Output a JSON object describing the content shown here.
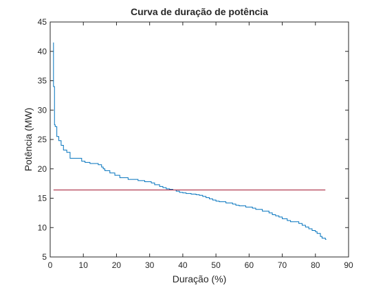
{
  "chart_data": {
    "type": "line",
    "title": "Curva de duração de potência",
    "xlabel": "Duração (%)",
    "ylabel": "Potência (MW)",
    "xlim": [
      0,
      90
    ],
    "ylim": [
      5,
      45
    ],
    "xticks": [
      0,
      10,
      20,
      30,
      40,
      50,
      60,
      70,
      80,
      90
    ],
    "yticks": [
      5,
      10,
      15,
      20,
      25,
      30,
      35,
      40,
      45
    ],
    "grid": false,
    "legend": "none",
    "series": [
      {
        "color": "#0072bd",
        "style": "step",
        "x": [
          1.0,
          1.1,
          1.3,
          1.5,
          2.0,
          2.6,
          3.3,
          4.0,
          5.0,
          6.0,
          9.5,
          10.5,
          12.0,
          14.5,
          15.5,
          16.0,
          16.5,
          18.0,
          19.5,
          21.0,
          23.5,
          26.5,
          28.5,
          30.5,
          31.5,
          33.0,
          34.0,
          35.0,
          36.0,
          37.0,
          38.0,
          39.0,
          40.0,
          41.0,
          42.5,
          44.0,
          45.0,
          46.0,
          47.0,
          48.0,
          49.0,
          50.0,
          51.0,
          53.0,
          55.0,
          56.0,
          57.0,
          59.0,
          61.0,
          62.0,
          64.0,
          66.0,
          67.0,
          68.0,
          69.0,
          70.0,
          71.5,
          72.5,
          75.0,
          76.0,
          77.0,
          78.0,
          79.0,
          80.0,
          80.5,
          81.5,
          82.0,
          83.0
        ],
        "y": [
          41.5,
          34.0,
          27.5,
          27.2,
          25.5,
          24.8,
          24.0,
          23.2,
          22.8,
          21.8,
          21.3,
          21.1,
          20.9,
          20.7,
          20.3,
          20.0,
          19.7,
          19.3,
          18.9,
          18.5,
          18.2,
          18.0,
          17.8,
          17.6,
          17.3,
          17.0,
          16.8,
          16.6,
          16.5,
          16.4,
          16.2,
          16.0,
          15.9,
          15.8,
          15.7,
          15.6,
          15.5,
          15.3,
          15.1,
          14.9,
          14.7,
          14.5,
          14.4,
          14.2,
          14.0,
          13.8,
          13.7,
          13.5,
          13.3,
          13.1,
          12.8,
          12.5,
          12.2,
          12.0,
          11.8,
          11.5,
          11.2,
          11.0,
          10.7,
          10.4,
          10.1,
          9.8,
          9.5,
          9.3,
          9.0,
          8.5,
          8.2,
          8.0
        ]
      },
      {
        "color": "#a2142f",
        "style": "line",
        "x": [
          1,
          83
        ],
        "y": [
          16.4,
          16.4
        ]
      }
    ]
  }
}
